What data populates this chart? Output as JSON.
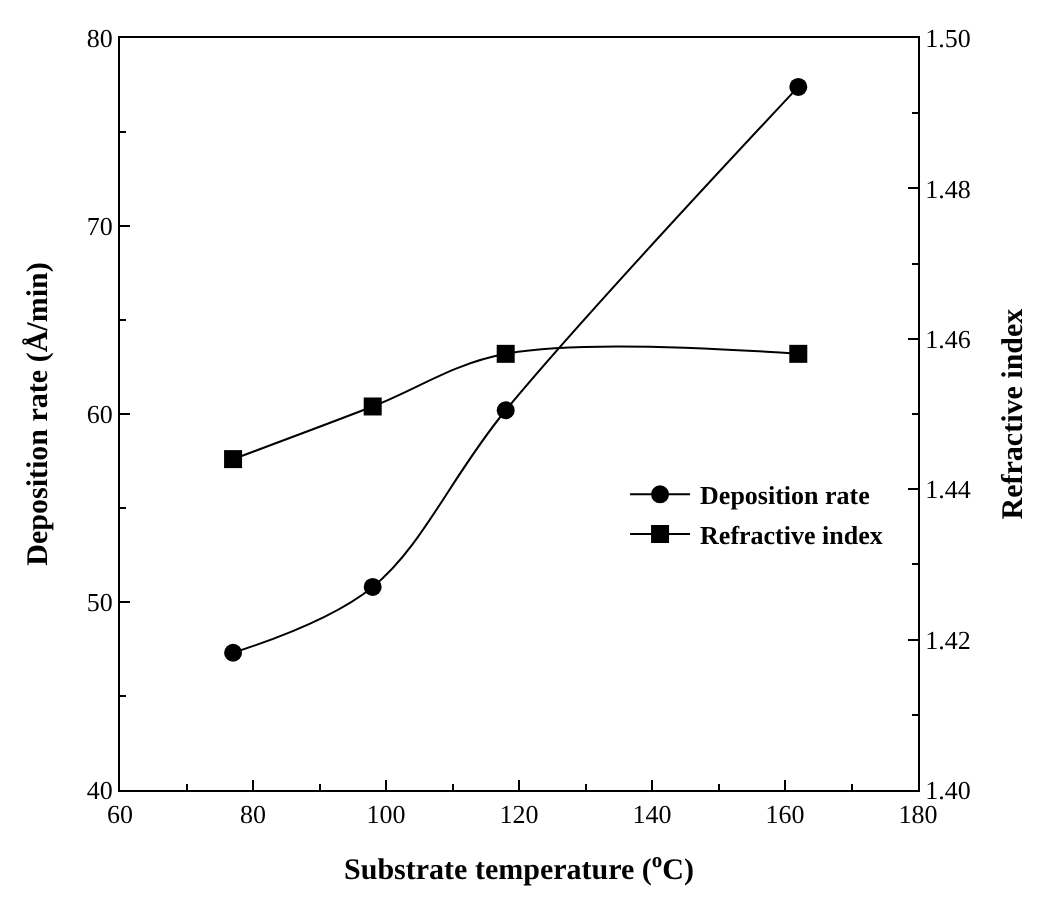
{
  "chart_data": {
    "type": "line",
    "xlabel": "Substrate temperature ($^{o}$C)",
    "ylabel": "Deposition rate (Å/min)",
    "y2label": "Refractive index",
    "x": [
      77,
      98,
      118,
      162
    ],
    "series": [
      {
        "name": "Deposition rate",
        "color": "#000000",
        "marker": "circle",
        "values": [
          47.3,
          50.8,
          60.2,
          77.4
        ]
      },
      {
        "name": "Refractive index",
        "color": "#000000",
        "marker": "square",
        "axis": "y2",
        "values": [
          1.444,
          1.451,
          1.458,
          1.458
        ]
      }
    ],
    "xlim": [
      60,
      180
    ],
    "xticks": [
      60,
      80,
      100,
      120,
      140,
      160,
      180
    ],
    "ylim": [
      40,
      80
    ],
    "yticks": [
      40,
      50,
      60,
      70,
      80
    ],
    "y2lim": [
      1.4,
      1.5
    ],
    "y2ticks": [
      {
        "value": 1.4,
        "label": "1.40"
      },
      {
        "value": 1.42,
        "label": "1.42"
      },
      {
        "value": 1.44,
        "label": "1.44"
      },
      {
        "value": 1.46,
        "label": "1.46"
      },
      {
        "value": 1.48,
        "label": "1.48"
      },
      {
        "value": 1.5,
        "label": "1.50"
      }
    ],
    "legend": "bottom right",
    "line_style": "solid"
  }
}
